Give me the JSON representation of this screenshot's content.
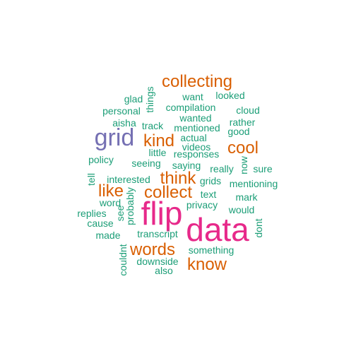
{
  "palette": {
    "small": "#1b9e77",
    "medium": "#d95f02",
    "large": "#7570b3",
    "largest": "#e7298a"
  },
  "words": [
    {
      "text": "data",
      "color": "#e7298a"
    },
    {
      "text": "flip",
      "color": "#e7298a"
    },
    {
      "text": "grid",
      "color": "#7570b3"
    },
    {
      "text": "collecting",
      "color": "#d95f02"
    },
    {
      "text": "think",
      "color": "#d95f02"
    },
    {
      "text": "collect",
      "color": "#d95f02"
    },
    {
      "text": "words",
      "color": "#d95f02"
    },
    {
      "text": "know",
      "color": "#d95f02"
    },
    {
      "text": "like",
      "color": "#d95f02"
    },
    {
      "text": "kind",
      "color": "#d95f02"
    },
    {
      "text": "cool",
      "color": "#d95f02"
    },
    {
      "text": "glad",
      "color": "#1b9e77"
    },
    {
      "text": "things",
      "color": "#1b9e77"
    },
    {
      "text": "want",
      "color": "#1b9e77"
    },
    {
      "text": "looked",
      "color": "#1b9e77"
    },
    {
      "text": "personal",
      "color": "#1b9e77"
    },
    {
      "text": "compilation",
      "color": "#1b9e77"
    },
    {
      "text": "cloud",
      "color": "#1b9e77"
    },
    {
      "text": "aisha",
      "color": "#1b9e77"
    },
    {
      "text": "track",
      "color": "#1b9e77"
    },
    {
      "text": "wanted",
      "color": "#1b9e77"
    },
    {
      "text": "rather",
      "color": "#1b9e77"
    },
    {
      "text": "mentioned",
      "color": "#1b9e77"
    },
    {
      "text": "good",
      "color": "#1b9e77"
    },
    {
      "text": "actual",
      "color": "#1b9e77"
    },
    {
      "text": "videos",
      "color": "#1b9e77"
    },
    {
      "text": "little",
      "color": "#1b9e77"
    },
    {
      "text": "responses",
      "color": "#1b9e77"
    },
    {
      "text": "policy",
      "color": "#1b9e77"
    },
    {
      "text": "seeing",
      "color": "#1b9e77"
    },
    {
      "text": "saying",
      "color": "#1b9e77"
    },
    {
      "text": "really",
      "color": "#1b9e77"
    },
    {
      "text": "now",
      "color": "#1b9e77"
    },
    {
      "text": "sure",
      "color": "#1b9e77"
    },
    {
      "text": "tell",
      "color": "#1b9e77"
    },
    {
      "text": "interested",
      "color": "#1b9e77"
    },
    {
      "text": "grids",
      "color": "#1b9e77"
    },
    {
      "text": "mentioning",
      "color": "#1b9e77"
    },
    {
      "text": "text",
      "color": "#1b9e77"
    },
    {
      "text": "mark",
      "color": "#1b9e77"
    },
    {
      "text": "word",
      "color": "#1b9e77"
    },
    {
      "text": "probably",
      "color": "#1b9e77"
    },
    {
      "text": "privacy",
      "color": "#1b9e77"
    },
    {
      "text": "would",
      "color": "#1b9e77"
    },
    {
      "text": "replies",
      "color": "#1b9e77"
    },
    {
      "text": "see",
      "color": "#1b9e77"
    },
    {
      "text": "cause",
      "color": "#1b9e77"
    },
    {
      "text": "dont",
      "color": "#1b9e77"
    },
    {
      "text": "made",
      "color": "#1b9e77"
    },
    {
      "text": "transcript",
      "color": "#1b9e77"
    },
    {
      "text": "couldnt",
      "color": "#1b9e77"
    },
    {
      "text": "something",
      "color": "#1b9e77"
    },
    {
      "text": "downside",
      "color": "#1b9e77"
    },
    {
      "text": "also",
      "color": "#1b9e77"
    }
  ]
}
